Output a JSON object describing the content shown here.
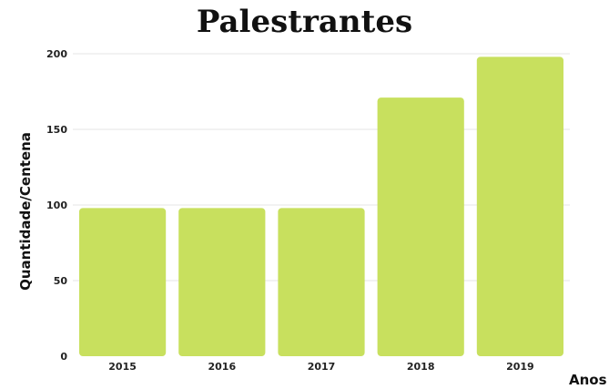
{
  "chart_data": {
    "type": "bar",
    "title": "Palestrantes",
    "xlabel": "Anos",
    "ylabel": "Quantidade/Centena",
    "categories": [
      "2015",
      "2016",
      "2017",
      "2018",
      "2019"
    ],
    "values": [
      98,
      98,
      98,
      171,
      198
    ],
    "ylim": [
      0,
      200
    ],
    "yticks": [
      0,
      50,
      100,
      150,
      200
    ],
    "grid": true,
    "legend": "none",
    "bar_color": "#c8e05e",
    "grid_color": "#e4e4e4"
  }
}
